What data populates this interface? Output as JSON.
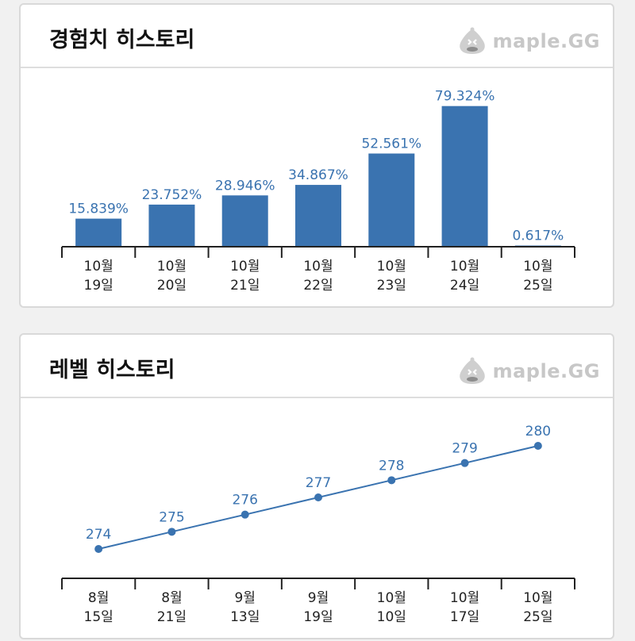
{
  "brand": {
    "text": "maple.GG",
    "logo_icon": "slime-mascot-icon",
    "color": "#c7c7c7"
  },
  "colors": {
    "bar": "#3a73b0",
    "line": "#3a73b0",
    "value_label": "#3a73b0",
    "axis": "#222222"
  },
  "exp_card": {
    "title": "경험치 히스토리"
  },
  "level_card": {
    "title": "레벨 히스토리"
  },
  "chart_data": [
    {
      "type": "bar",
      "categories": [
        [
          "10월",
          "19일"
        ],
        [
          "10월",
          "20일"
        ],
        [
          "10월",
          "21일"
        ],
        [
          "10월",
          "22일"
        ],
        [
          "10월",
          "23일"
        ],
        [
          "10월",
          "24일"
        ],
        [
          "10월",
          "25일"
        ]
      ],
      "values": [
        15.839,
        23.752,
        28.946,
        34.867,
        52.561,
        79.324,
        0.617
      ],
      "value_labels": [
        "15.839%",
        "23.752%",
        "28.946%",
        "34.867%",
        "52.561%",
        "79.324%",
        "0.617%"
      ],
      "ylim": [
        0,
        85
      ],
      "grid": false
    },
    {
      "type": "line",
      "categories": [
        [
          "8월",
          "15일"
        ],
        [
          "8월",
          "21일"
        ],
        [
          "9월",
          "13일"
        ],
        [
          "9월",
          "19일"
        ],
        [
          "10월",
          "10일"
        ],
        [
          "10월",
          "17일"
        ],
        [
          "10월",
          "25일"
        ]
      ],
      "values": [
        274,
        275,
        276,
        277,
        278,
        279,
        280
      ],
      "value_labels": [
        "274",
        "275",
        "276",
        "277",
        "278",
        "279",
        "280"
      ],
      "ylim": [
        273,
        281
      ],
      "grid": false
    }
  ]
}
